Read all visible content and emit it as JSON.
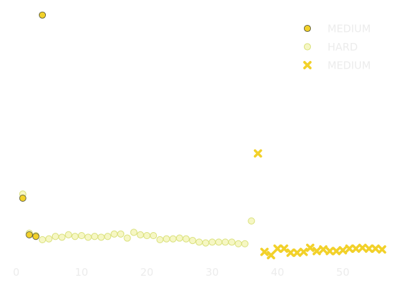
{
  "chart_data": {
    "type": "scatter",
    "title": "",
    "xlabel": "",
    "ylabel": "",
    "xlim": [
      -1,
      57
    ],
    "ylim": [
      -1.5,
      30
    ],
    "xticks": [
      0,
      10,
      20,
      30,
      40,
      50
    ],
    "xtick_labels": [
      "0",
      "10",
      "20",
      "30",
      "40",
      "50"
    ],
    "grid": false,
    "legend_position": "top-right",
    "series": [
      {
        "name": "MEDIUM",
        "marker": "circle",
        "fill": "#f2d12a",
        "stroke": "#5a5a3a",
        "x": [
          1,
          2,
          3,
          4
        ],
        "y": [
          6.5,
          2.0,
          1.8,
          29.0
        ]
      },
      {
        "name": "HARD",
        "marker": "circle-open",
        "fill": "#f6f7c4",
        "stroke": "#d9e07a",
        "x": [
          1,
          2,
          3,
          4,
          5,
          6,
          7,
          8,
          9,
          10,
          11,
          12,
          13,
          14,
          15,
          16,
          17,
          18,
          19,
          20,
          21,
          22,
          23,
          24,
          25,
          26,
          27,
          28,
          29,
          30,
          31,
          32,
          33,
          34,
          35,
          36
        ],
        "y": [
          7.0,
          2.2,
          1.9,
          1.4,
          1.5,
          1.8,
          1.7,
          2.0,
          1.8,
          1.9,
          1.7,
          1.8,
          1.7,
          1.8,
          2.1,
          2.1,
          1.6,
          2.3,
          2.0,
          1.9,
          1.9,
          1.4,
          1.5,
          1.5,
          1.6,
          1.5,
          1.3,
          1.1,
          1.0,
          1.1,
          1.1,
          1.1,
          1.1,
          0.9,
          0.9,
          3.7
        ]
      },
      {
        "name": "MEDIUM",
        "marker": "x",
        "fill": "#f2d12a",
        "stroke": "#f2d12a",
        "x": [
          37,
          38,
          39,
          40,
          41,
          42,
          43,
          44,
          45,
          46,
          47,
          48,
          49,
          50,
          51,
          52,
          53,
          54,
          55,
          56
        ],
        "y": [
          12.0,
          -0.1,
          -0.5,
          0.3,
          0.3,
          -0.2,
          -0.2,
          -0.1,
          0.4,
          0.0,
          0.2,
          0.0,
          0.0,
          0.1,
          0.3,
          0.3,
          0.4,
          0.3,
          0.3,
          0.2
        ]
      }
    ]
  }
}
